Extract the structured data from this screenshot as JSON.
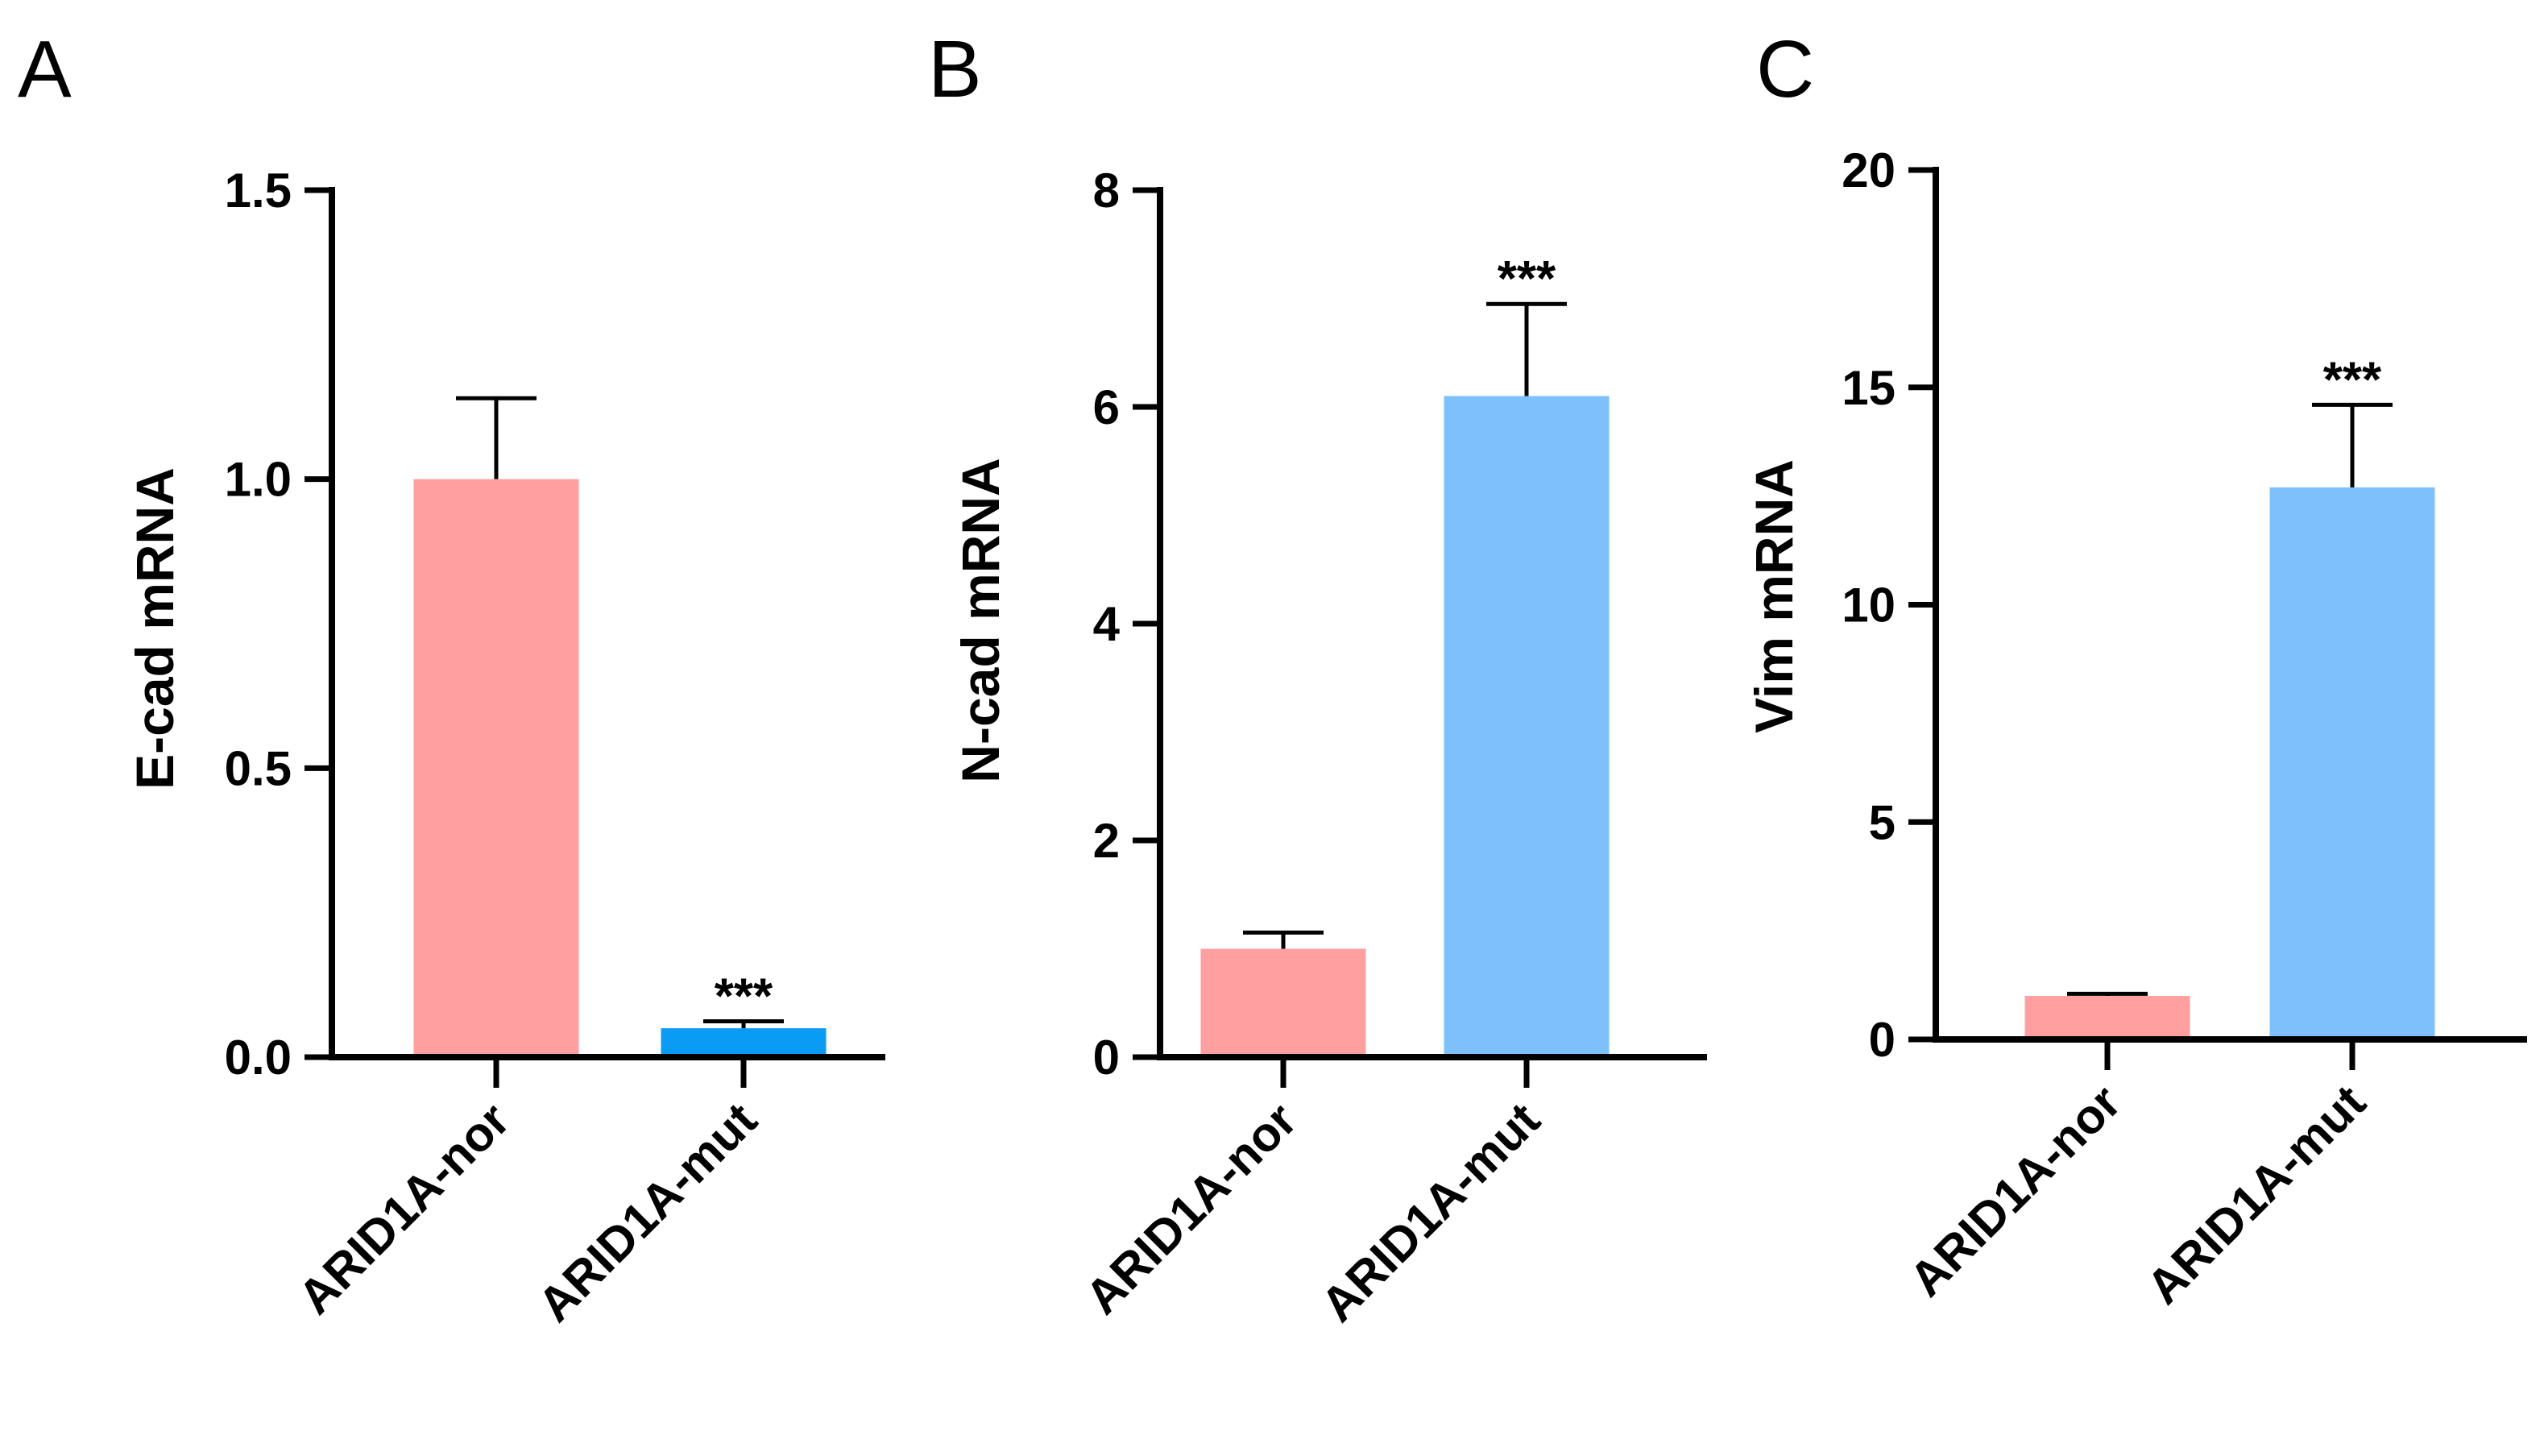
{
  "chart_data": [
    {
      "panel": "A",
      "type": "bar",
      "ylabel": "E-cad mRNA",
      "ylim": [
        0,
        1.5
      ],
      "yticks": [
        "0.0",
        "0.5",
        "1.0",
        "1.5"
      ],
      "categories": [
        "ARID1A-nor",
        "ARID1A-mut"
      ],
      "values": [
        1.0,
        0.05
      ],
      "errors": [
        0.14,
        0.012
      ],
      "colors": [
        "#ff9f9f",
        "#0a9cf5"
      ],
      "annotations": [
        "",
        "***"
      ]
    },
    {
      "panel": "B",
      "type": "bar",
      "ylabel": "N-cad mRNA",
      "ylim": [
        0,
        8
      ],
      "yticks": [
        "0",
        "2",
        "4",
        "6",
        "8"
      ],
      "categories": [
        "ARID1A-nor",
        "ARID1A-mut"
      ],
      "values": [
        1.0,
        6.1
      ],
      "errors": [
        0.15,
        0.85
      ],
      "colors": [
        "#ff9f9f",
        "#7ec0fa"
      ],
      "annotations": [
        "",
        "***"
      ]
    },
    {
      "panel": "C",
      "type": "bar",
      "ylabel": "Vim mRNA",
      "ylim": [
        0,
        20
      ],
      "yticks": [
        "0",
        "5",
        "10",
        "15",
        "20"
      ],
      "categories": [
        "ARID1A-nor",
        "ARID1A-mut"
      ],
      "values": [
        1.0,
        12.7
      ],
      "errors": [
        0.05,
        1.9
      ],
      "colors": [
        "#ff9f9f",
        "#7ec0fa"
      ],
      "annotations": [
        "",
        "***"
      ]
    }
  ]
}
